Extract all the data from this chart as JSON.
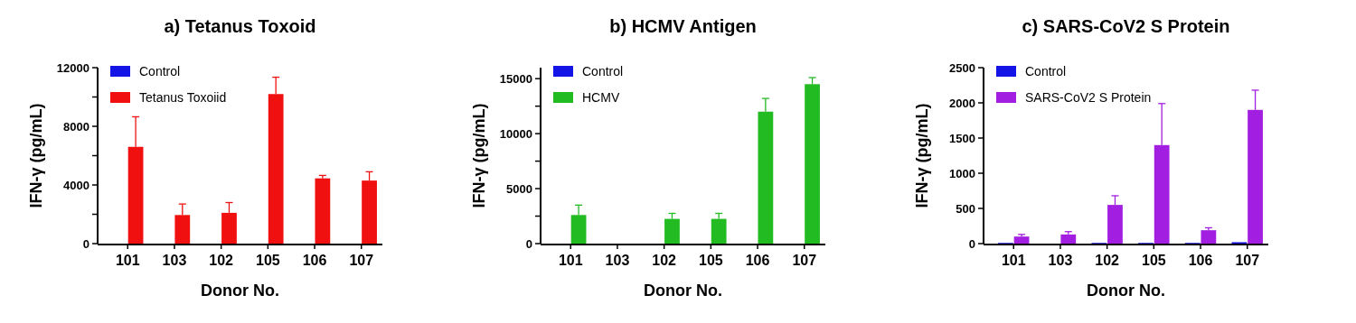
{
  "chart_data": [
    {
      "type": "bar",
      "title": "a) Tetanus Toxoid",
      "xlabel": "Donor No.",
      "ylabel": "IFN-γ (pg/mL)",
      "categories": [
        "101",
        "103",
        "102",
        "105",
        "106",
        "107"
      ],
      "ylim": [
        0,
        12000
      ],
      "yticks": [
        0,
        {
          "value": 2000,
          "label": null
        },
        4000,
        {
          "value": 6000,
          "label": null
        },
        8000,
        {
          "value": 10000,
          "label": null
        },
        12000
      ],
      "legend": "top left",
      "grid": false,
      "series": [
        {
          "name": "Control",
          "color": "#1414e6",
          "values": [
            0,
            0,
            0,
            0,
            0,
            0
          ]
        },
        {
          "name": "Tetanus Toxoiid",
          "color": "#f01010",
          "values": [
            6600,
            1950,
            2100,
            10200,
            4450,
            4300
          ],
          "errors": [
            [
              6600,
              8650
            ],
            [
              1950,
              2700
            ],
            [
              2100,
              2800
            ],
            [
              10200,
              11350
            ],
            [
              4450,
              4650
            ],
            [
              4300,
              4900
            ]
          ]
        }
      ]
    },
    {
      "type": "bar",
      "title": "b) HCMV Antigen",
      "xlabel": "Donor No.",
      "ylabel": "IFN-γ (pg/mL)",
      "categories": [
        "101",
        "103",
        "102",
        "105",
        "106",
        "107"
      ],
      "ylim": [
        0,
        16000
      ],
      "yticks": [
        0,
        {
          "value": 2500,
          "label": null
        },
        5000,
        {
          "value": 7500,
          "label": null
        },
        10000,
        {
          "value": 12500,
          "label": null
        },
        15000
      ],
      "legend": "top left",
      "grid": false,
      "series": [
        {
          "name": "Control",
          "color": "#1414e6",
          "values": [
            0,
            0,
            0,
            0,
            0,
            0
          ]
        },
        {
          "name": "HCMV",
          "color": "#22bb22",
          "values": [
            2600,
            0,
            2250,
            2250,
            12000,
            14500
          ],
          "errors": [
            [
              2600,
              3500
            ],
            null,
            [
              2250,
              2750
            ],
            [
              2250,
              2750
            ],
            [
              12000,
              13200
            ],
            [
              14500,
              15100
            ]
          ]
        }
      ]
    },
    {
      "type": "bar",
      "title": "c) SARS-CoV2 S Protein",
      "xlabel": "Donor No.",
      "ylabel": "IFN-γ (pg/mL)",
      "categories": [
        "101",
        "103",
        "102",
        "105",
        "106",
        "107"
      ],
      "ylim": [
        0,
        2500
      ],
      "yticks": [
        0,
        500,
        1000,
        1500,
        2000,
        2500
      ],
      "legend": "top left",
      "grid": false,
      "series": [
        {
          "name": "Control",
          "color": "#1414e6",
          "values": [
            10,
            0,
            10,
            10,
            10,
            20
          ]
        },
        {
          "name": "SARS-CoV2 S Protein",
          "color": "#a21ee0",
          "values": [
            100,
            130,
            550,
            1400,
            190,
            1900
          ],
          "errors": [
            [
              100,
              130
            ],
            [
              130,
              170
            ],
            [
              550,
              680
            ],
            [
              1400,
              1990
            ],
            [
              190,
              225
            ],
            [
              1900,
              2180
            ]
          ]
        }
      ]
    }
  ]
}
